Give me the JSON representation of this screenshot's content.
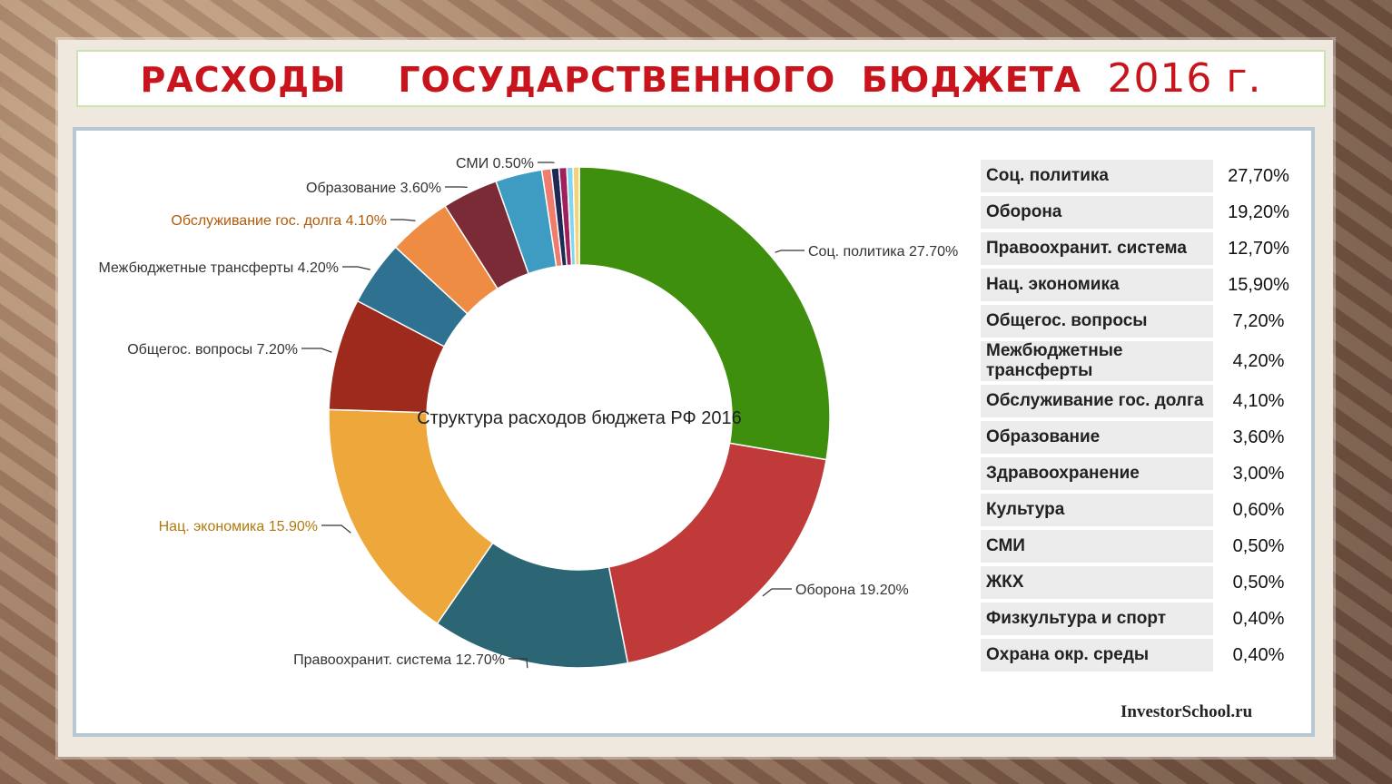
{
  "page_title": "РАСХОДЫ    ГОСУДАРСТВЕННОГО  БЮДЖЕТА",
  "page_year": "2016 г.",
  "watermark": "InvestorSchool.ru",
  "chart_data": {
    "type": "pie",
    "donut": true,
    "center_label": "Структура расходов бюджета РФ 2016",
    "slices": [
      {
        "label": "Соц. политика",
        "value": 27.7,
        "label_text": "Соц. политика 27.70%",
        "color": "#3f8f0e"
      },
      {
        "label": "Оборона",
        "value": 19.2,
        "label_text": "Оборона 19.20%",
        "color": "#c03a3a"
      },
      {
        "label": "Правоохранит. система",
        "value": 12.7,
        "label_text": "Правоохранит. система 12.70%",
        "color": "#2c6674"
      },
      {
        "label": "Нац. экономика",
        "value": 15.9,
        "label_text": "Нац. экономика 15.90%",
        "color": "#eea73b"
      },
      {
        "label": "Общегос. вопросы",
        "value": 7.2,
        "label_text": "Общегос. вопросы 7.20%",
        "color": "#9e2a1e"
      },
      {
        "label": "Межбюджетные трансферты",
        "value": 4.2,
        "label_text": "Межбюджетные трансферты 4.20%",
        "color": "#2e7190"
      },
      {
        "label": "Обслуживание гос. долга",
        "value": 4.1,
        "label_text": "Обслуживание гос. долга 4.10%",
        "color": "#ee8c44"
      },
      {
        "label": "Образование",
        "value": 3.6,
        "label_text": "Образование 3.60%",
        "color": "#7a2b36"
      },
      {
        "label": "Здравоохранение",
        "value": 3.0,
        "label_text": "",
        "color": "#3e9cc3"
      },
      {
        "label": "Культура",
        "value": 0.6,
        "label_text": "",
        "color": "#f07c6e"
      },
      {
        "label": "СМИ",
        "value": 0.5,
        "label_text": "СМИ 0.50%",
        "color": "#1e2a55"
      },
      {
        "label": "ЖКХ",
        "value": 0.5,
        "label_text": "",
        "color": "#a0205e"
      },
      {
        "label": "Физкультура и спорт",
        "value": 0.4,
        "label_text": "",
        "color": "#7fd6f0"
      },
      {
        "label": "Охрана окр. среды",
        "value": 0.4,
        "label_text": "",
        "color": "#f5d27a"
      }
    ]
  },
  "table": {
    "rows": [
      {
        "name": "Соц. политика",
        "value": "27,70%"
      },
      {
        "name": "Оборона",
        "value": "19,20%"
      },
      {
        "name": "Правоохранит. система",
        "value": "12,70%"
      },
      {
        "name": "Нац. экономика",
        "value": "15,90%"
      },
      {
        "name": "Общегос. вопросы",
        "value": "7,20%"
      },
      {
        "name": "Межбюджетные трансферты",
        "value": "4,20%"
      },
      {
        "name": "Обслуживание гос. долга",
        "value": "4,10%"
      },
      {
        "name": "Образование",
        "value": "3,60%"
      },
      {
        "name": "Здравоохранение",
        "value": "3,00%"
      },
      {
        "name": "Культура",
        "value": "0,60%"
      },
      {
        "name": "СМИ",
        "value": "0,50%"
      },
      {
        "name": "ЖКХ",
        "value": "0,50%"
      },
      {
        "name": "Физкультура и спорт",
        "value": "0,40%"
      },
      {
        "name": "Охрана окр. среды",
        "value": "0,40%"
      }
    ]
  }
}
